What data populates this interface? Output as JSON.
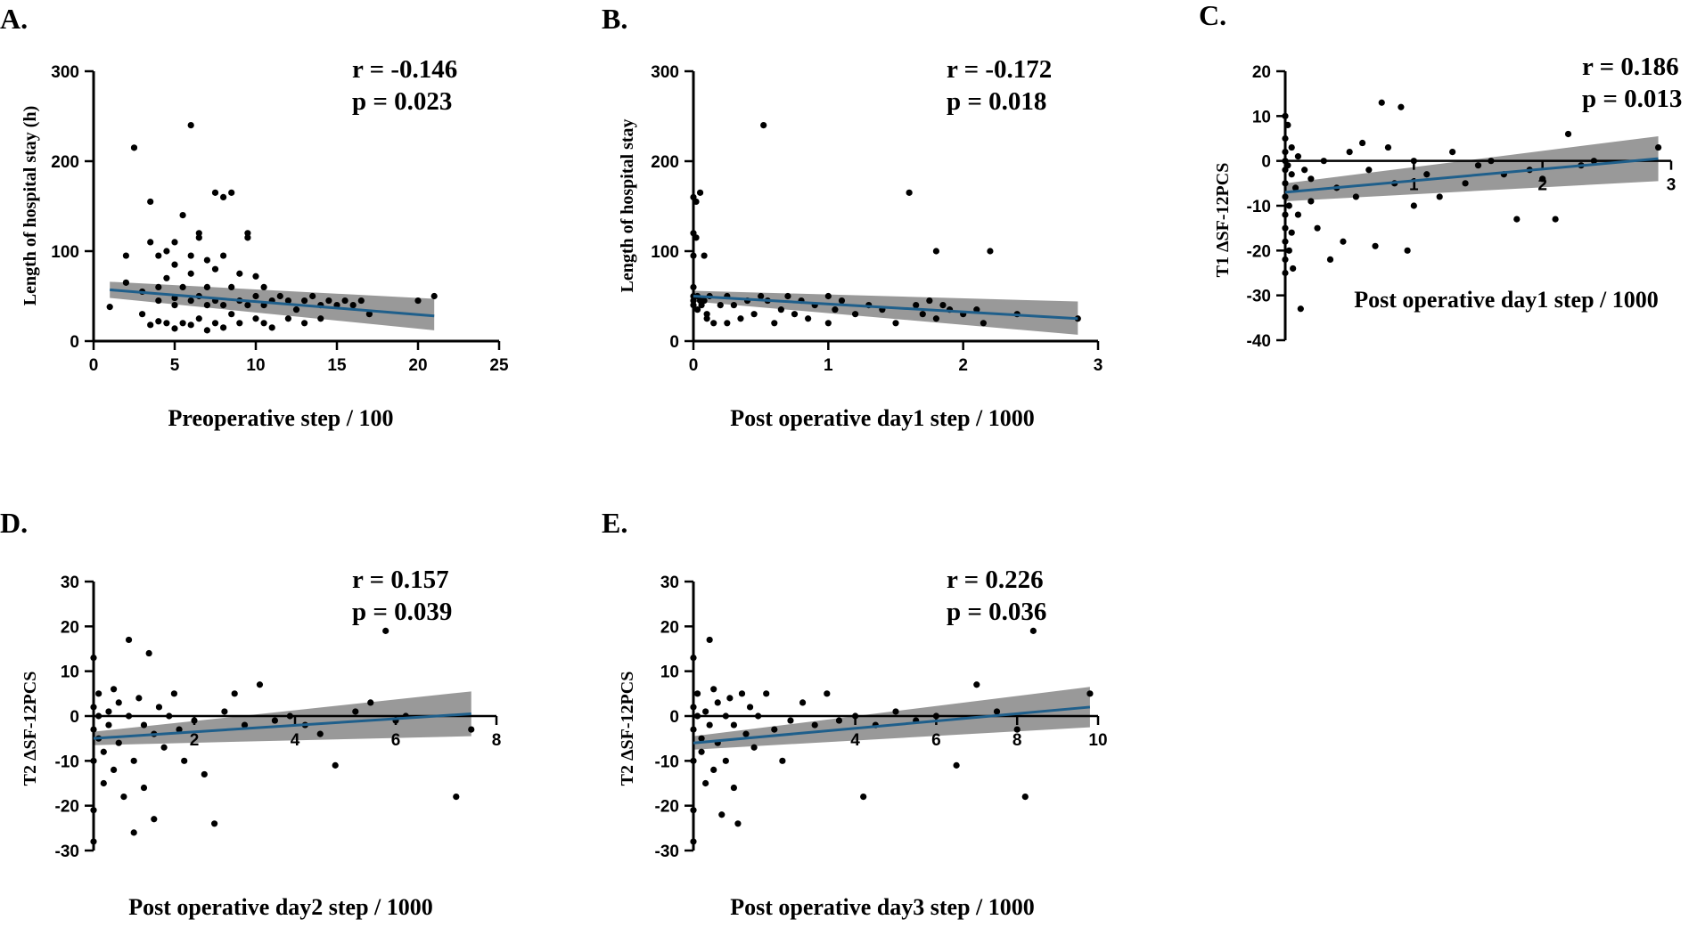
{
  "chart_data": [
    {
      "panel": "A.",
      "type": "scatter",
      "xlabel": "Preoperative step / 100",
      "ylabel": "Length of hospital stay (h)",
      "xlim": [
        0,
        25
      ],
      "ylim": [
        0,
        300
      ],
      "xticks": [
        0,
        5,
        10,
        15,
        20,
        25
      ],
      "yticks": [
        0,
        100,
        200,
        300
      ],
      "x_tick_labels": [
        "0",
        "5",
        "10",
        "15",
        "20",
        "25"
      ],
      "y_tick_labels": [
        "0",
        "100",
        "200",
        "300"
      ],
      "stats": {
        "r": "r = -0.146",
        "p": "p = 0.023"
      },
      "fit": {
        "x": [
          1,
          21
        ],
        "y": [
          57,
          28
        ]
      },
      "ci": {
        "x": [
          1,
          21
        ],
        "lower": [
          48,
          12
        ],
        "upper": [
          66,
          47
        ]
      },
      "points": [
        [
          1,
          38
        ],
        [
          2,
          65
        ],
        [
          2,
          95
        ],
        [
          2.5,
          215
        ],
        [
          3,
          55
        ],
        [
          3,
          30
        ],
        [
          3.5,
          155
        ],
        [
          3.5,
          110
        ],
        [
          3.5,
          18
        ],
        [
          4,
          60
        ],
        [
          4,
          95
        ],
        [
          4,
          45
        ],
        [
          4,
          22
        ],
        [
          4.5,
          70
        ],
        [
          4.5,
          100
        ],
        [
          4.5,
          20
        ],
        [
          5,
          48
        ],
        [
          5,
          85
        ],
        [
          5,
          110
        ],
        [
          5,
          14
        ],
        [
          5,
          40
        ],
        [
          5.5,
          140
        ],
        [
          5.5,
          60
        ],
        [
          5.5,
          20
        ],
        [
          6,
          240
        ],
        [
          6,
          75
        ],
        [
          6,
          95
        ],
        [
          6,
          45
        ],
        [
          6,
          18
        ],
        [
          6.5,
          120
        ],
        [
          6.5,
          115
        ],
        [
          6.5,
          50
        ],
        [
          6.5,
          25
        ],
        [
          7,
          90
        ],
        [
          7,
          40
        ],
        [
          7,
          12
        ],
        [
          7,
          60
        ],
        [
          7.5,
          165
        ],
        [
          7.5,
          80
        ],
        [
          7.5,
          45
        ],
        [
          7.5,
          20
        ],
        [
          8,
          160
        ],
        [
          8,
          95
        ],
        [
          8,
          40
        ],
        [
          8,
          15
        ],
        [
          8.5,
          165
        ],
        [
          8.5,
          60
        ],
        [
          8.5,
          30
        ],
        [
          9,
          75
        ],
        [
          9,
          45
        ],
        [
          9,
          20
        ],
        [
          9.5,
          120
        ],
        [
          9.5,
          115
        ],
        [
          9.5,
          40
        ],
        [
          10,
          72
        ],
        [
          10,
          50
        ],
        [
          10,
          25
        ],
        [
          10.5,
          60
        ],
        [
          10.5,
          40
        ],
        [
          10.5,
          20
        ],
        [
          11,
          45
        ],
        [
          11,
          15
        ],
        [
          11.5,
          50
        ],
        [
          12,
          45
        ],
        [
          12,
          25
        ],
        [
          12.5,
          35
        ],
        [
          13,
          45
        ],
        [
          13,
          20
        ],
        [
          13.5,
          50
        ],
        [
          14,
          40
        ],
        [
          14,
          25
        ],
        [
          14.5,
          45
        ],
        [
          15,
          40
        ],
        [
          15.5,
          45
        ],
        [
          16,
          40
        ],
        [
          16.5,
          45
        ],
        [
          17,
          30
        ],
        [
          20,
          45
        ],
        [
          21,
          50
        ]
      ]
    },
    {
      "panel": "B.",
      "type": "scatter",
      "xlabel": "Post operative day1 step / 1000",
      "ylabel": "Length of hospital stay",
      "xlim": [
        0,
        3
      ],
      "ylim": [
        0,
        300
      ],
      "xticks": [
        0,
        1,
        2,
        3
      ],
      "yticks": [
        0,
        100,
        200,
        300
      ],
      "x_tick_labels": [
        "0",
        "1",
        "2",
        "3"
      ],
      "y_tick_labels": [
        "0",
        "100",
        "200",
        "300"
      ],
      "stats": {
        "r": "r = -0.172",
        "p": "p = 0.018"
      },
      "fit": {
        "x": [
          0,
          2.85
        ],
        "y": [
          50,
          25
        ]
      },
      "ci": {
        "x": [
          0,
          2.85
        ],
        "lower": [
          44,
          7
        ],
        "upper": [
          56,
          44
        ]
      },
      "points": [
        [
          0,
          160
        ],
        [
          0,
          120
        ],
        [
          0,
          95
        ],
        [
          0,
          60
        ],
        [
          0,
          50
        ],
        [
          0,
          45
        ],
        [
          0,
          40
        ],
        [
          0.02,
          155
        ],
        [
          0.02,
          115
        ],
        [
          0.03,
          50
        ],
        [
          0.03,
          35
        ],
        [
          0.05,
          165
        ],
        [
          0.05,
          45
        ],
        [
          0.06,
          40
        ],
        [
          0.08,
          95
        ],
        [
          0.08,
          45
        ],
        [
          0.1,
          25
        ],
        [
          0.1,
          30
        ],
        [
          0.12,
          50
        ],
        [
          0.15,
          20
        ],
        [
          0.2,
          40
        ],
        [
          0.25,
          50
        ],
        [
          0.25,
          20
        ],
        [
          0.3,
          40
        ],
        [
          0.35,
          25
        ],
        [
          0.4,
          45
        ],
        [
          0.45,
          30
        ],
        [
          0.5,
          50
        ],
        [
          0.52,
          240
        ],
        [
          0.55,
          45
        ],
        [
          0.6,
          20
        ],
        [
          0.65,
          35
        ],
        [
          0.7,
          50
        ],
        [
          0.75,
          30
        ],
        [
          0.8,
          45
        ],
        [
          0.85,
          25
        ],
        [
          0.9,
          40
        ],
        [
          1,
          50
        ],
        [
          1,
          20
        ],
        [
          1.05,
          35
        ],
        [
          1.1,
          45
        ],
        [
          1.2,
          30
        ],
        [
          1.3,
          40
        ],
        [
          1.4,
          35
        ],
        [
          1.5,
          20
        ],
        [
          1.6,
          165
        ],
        [
          1.65,
          40
        ],
        [
          1.7,
          30
        ],
        [
          1.75,
          45
        ],
        [
          1.8,
          100
        ],
        [
          1.8,
          25
        ],
        [
          1.85,
          40
        ],
        [
          1.9,
          35
        ],
        [
          2,
          30
        ],
        [
          2.1,
          35
        ],
        [
          2.15,
          20
        ],
        [
          2.2,
          100
        ],
        [
          2.4,
          30
        ],
        [
          2.85,
          25
        ]
      ]
    },
    {
      "panel": "C.",
      "type": "scatter",
      "xlabel": "Post operative day1 step / 1000",
      "ylabel": "T1 ΔSF-12PCS",
      "xlim": [
        0,
        3
      ],
      "ylim": [
        -40,
        20
      ],
      "xticks": [
        1,
        2,
        3
      ],
      "yticks": [
        -40,
        -30,
        -20,
        -10,
        0,
        10,
        20
      ],
      "x_tick_labels": [
        "1",
        "2",
        "3"
      ],
      "y_tick_labels": [
        "-40",
        "-30",
        "-20",
        "-10",
        "0",
        "10",
        "20"
      ],
      "stats": {
        "r": "r = 0.186",
        "p": "p = 0.013"
      },
      "fit": {
        "x": [
          0,
          2.9
        ],
        "y": [
          -7,
          0.5
        ]
      },
      "ci": {
        "x": [
          0,
          2.9
        ],
        "lower": [
          -9,
          -4.5
        ],
        "upper": [
          -5,
          5.5
        ]
      },
      "points": [
        [
          0,
          10
        ],
        [
          0,
          5
        ],
        [
          0,
          2
        ],
        [
          0,
          0
        ],
        [
          0,
          -2
        ],
        [
          0,
          -5
        ],
        [
          0,
          -8
        ],
        [
          0,
          -12
        ],
        [
          0,
          -15
        ],
        [
          0,
          -18
        ],
        [
          0,
          -22
        ],
        [
          0,
          -25
        ],
        [
          0.02,
          8
        ],
        [
          0.02,
          -1
        ],
        [
          0.03,
          -10
        ],
        [
          0.03,
          -20
        ],
        [
          0.05,
          3
        ],
        [
          0.05,
          -3
        ],
        [
          0.05,
          -16
        ],
        [
          0.06,
          -24
        ],
        [
          0.08,
          -6
        ],
        [
          0.1,
          1
        ],
        [
          0.1,
          -12
        ],
        [
          0.12,
          -33
        ],
        [
          0.15,
          -2
        ],
        [
          0.2,
          -4
        ],
        [
          0.2,
          -9
        ],
        [
          0.25,
          -15
        ],
        [
          0.3,
          0
        ],
        [
          0.35,
          -22
        ],
        [
          0.4,
          -6
        ],
        [
          0.45,
          -18
        ],
        [
          0.5,
          2
        ],
        [
          0.55,
          -8
        ],
        [
          0.6,
          4
        ],
        [
          0.65,
          -2
        ],
        [
          0.7,
          -19
        ],
        [
          0.75,
          13
        ],
        [
          0.8,
          3
        ],
        [
          0.85,
          -5
        ],
        [
          0.9,
          12
        ],
        [
          0.95,
          -20
        ],
        [
          1,
          0
        ],
        [
          1,
          -10
        ],
        [
          1.1,
          -3
        ],
        [
          1.2,
          -8
        ],
        [
          1.3,
          2
        ],
        [
          1.4,
          -5
        ],
        [
          1.5,
          -1
        ],
        [
          1.6,
          0
        ],
        [
          1.7,
          -3
        ],
        [
          1.8,
          -13
        ],
        [
          1.9,
          -2
        ],
        [
          2,
          -4
        ],
        [
          2.1,
          -13
        ],
        [
          2.2,
          6
        ],
        [
          2.3,
          -1
        ],
        [
          2.4,
          0
        ],
        [
          2.9,
          3
        ]
      ]
    },
    {
      "panel": "D.",
      "type": "scatter",
      "xlabel": "Post operative day2 step / 1000",
      "ylabel": "T2 ΔSF-12PCS",
      "xlim": [
        0,
        8
      ],
      "ylim": [
        -30,
        30
      ],
      "xticks": [
        2,
        4,
        6,
        8
      ],
      "yticks": [
        -30,
        -20,
        -10,
        0,
        10,
        20,
        30
      ],
      "x_tick_labels": [
        "2",
        "4",
        "6",
        "8"
      ],
      "y_tick_labels": [
        "-30",
        "-20",
        "-10",
        "0",
        "10",
        "20",
        "30"
      ],
      "stats": {
        "r": "r = 0.157",
        "p": "p = 0.039"
      },
      "fit": {
        "x": [
          0,
          7.5
        ],
        "y": [
          -5,
          0.5
        ]
      },
      "ci": {
        "x": [
          0,
          7.5
        ],
        "lower": [
          -6.5,
          -4.5
        ],
        "upper": [
          -3.5,
          5.5
        ]
      },
      "points": [
        [
          0,
          13
        ],
        [
          0,
          2
        ],
        [
          0,
          -3
        ],
        [
          0,
          -10
        ],
        [
          0,
          -21
        ],
        [
          0,
          -28
        ],
        [
          0.1,
          5
        ],
        [
          0.1,
          0
        ],
        [
          0.1,
          -5
        ],
        [
          0.2,
          -8
        ],
        [
          0.2,
          -15
        ],
        [
          0.3,
          1
        ],
        [
          0.3,
          -2
        ],
        [
          0.4,
          6
        ],
        [
          0.4,
          -12
        ],
        [
          0.5,
          3
        ],
        [
          0.5,
          -6
        ],
        [
          0.6,
          -18
        ],
        [
          0.7,
          17
        ],
        [
          0.7,
          0
        ],
        [
          0.8,
          -10
        ],
        [
          0.8,
          -26
        ],
        [
          0.9,
          4
        ],
        [
          1,
          -2
        ],
        [
          1,
          -16
        ],
        [
          1.1,
          14
        ],
        [
          1.2,
          -4
        ],
        [
          1.2,
          -23
        ],
        [
          1.3,
          2
        ],
        [
          1.4,
          -7
        ],
        [
          1.5,
          0
        ],
        [
          1.6,
          5
        ],
        [
          1.7,
          -3
        ],
        [
          1.8,
          -10
        ],
        [
          2,
          -1
        ],
        [
          2.2,
          -13
        ],
        [
          2.4,
          -24
        ],
        [
          2.6,
          1
        ],
        [
          2.8,
          5
        ],
        [
          3,
          -2
        ],
        [
          3.3,
          7
        ],
        [
          3.6,
          -1
        ],
        [
          3.9,
          0
        ],
        [
          4.2,
          -2
        ],
        [
          4.5,
          -4
        ],
        [
          4.8,
          -11
        ],
        [
          5.2,
          1
        ],
        [
          5.5,
          3
        ],
        [
          5.8,
          19
        ],
        [
          6,
          -1
        ],
        [
          6.2,
          0
        ],
        [
          7.2,
          -18
        ],
        [
          7.5,
          -3
        ]
      ]
    },
    {
      "panel": "E.",
      "type": "scatter",
      "xlabel": "Post operative day3 step / 1000",
      "ylabel": "T2 ΔSF-12PCS",
      "xlim": [
        0,
        10
      ],
      "ylim": [
        -30,
        30
      ],
      "xticks": [
        4,
        6,
        8,
        10
      ],
      "yticks": [
        -30,
        -20,
        -10,
        0,
        10,
        20,
        30
      ],
      "x_tick_labels": [
        "4",
        "6",
        "8",
        "10"
      ],
      "y_tick_labels": [
        "-30",
        "-20",
        "-10",
        "0",
        "10",
        "20",
        "30"
      ],
      "stats": {
        "r": "r = 0.226",
        "p": "p = 0.036"
      },
      "fit": {
        "x": [
          0,
          9.8
        ],
        "y": [
          -6,
          2
        ]
      },
      "ci": {
        "x": [
          0,
          9.8
        ],
        "lower": [
          -7.5,
          -2.5
        ],
        "upper": [
          -4.5,
          6.5
        ]
      },
      "points": [
        [
          0,
          13
        ],
        [
          0,
          2
        ],
        [
          0,
          -3
        ],
        [
          0,
          -10
        ],
        [
          0,
          -21
        ],
        [
          0,
          -28
        ],
        [
          0.1,
          5
        ],
        [
          0.1,
          0
        ],
        [
          0.2,
          -5
        ],
        [
          0.2,
          -8
        ],
        [
          0.3,
          -15
        ],
        [
          0.3,
          1
        ],
        [
          0.4,
          17
        ],
        [
          0.4,
          -2
        ],
        [
          0.5,
          6
        ],
        [
          0.5,
          -12
        ],
        [
          0.6,
          3
        ],
        [
          0.6,
          -6
        ],
        [
          0.7,
          -22
        ],
        [
          0.8,
          0
        ],
        [
          0.8,
          -10
        ],
        [
          0.9,
          4
        ],
        [
          1,
          -2
        ],
        [
          1,
          -16
        ],
        [
          1.1,
          -24
        ],
        [
          1.2,
          5
        ],
        [
          1.3,
          -4
        ],
        [
          1.4,
          2
        ],
        [
          1.5,
          -7
        ],
        [
          1.6,
          0
        ],
        [
          1.8,
          5
        ],
        [
          2,
          -3
        ],
        [
          2.2,
          -10
        ],
        [
          2.4,
          -1
        ],
        [
          2.7,
          3
        ],
        [
          3,
          -2
        ],
        [
          3.3,
          5
        ],
        [
          3.6,
          -1
        ],
        [
          4,
          0
        ],
        [
          4.2,
          -18
        ],
        [
          4.5,
          -2
        ],
        [
          5,
          1
        ],
        [
          5.5,
          -1
        ],
        [
          6,
          0
        ],
        [
          6.5,
          -11
        ],
        [
          7,
          7
        ],
        [
          7.5,
          1
        ],
        [
          8,
          -3
        ],
        [
          8.2,
          -18
        ],
        [
          8.4,
          19
        ],
        [
          9.8,
          5
        ]
      ]
    }
  ]
}
